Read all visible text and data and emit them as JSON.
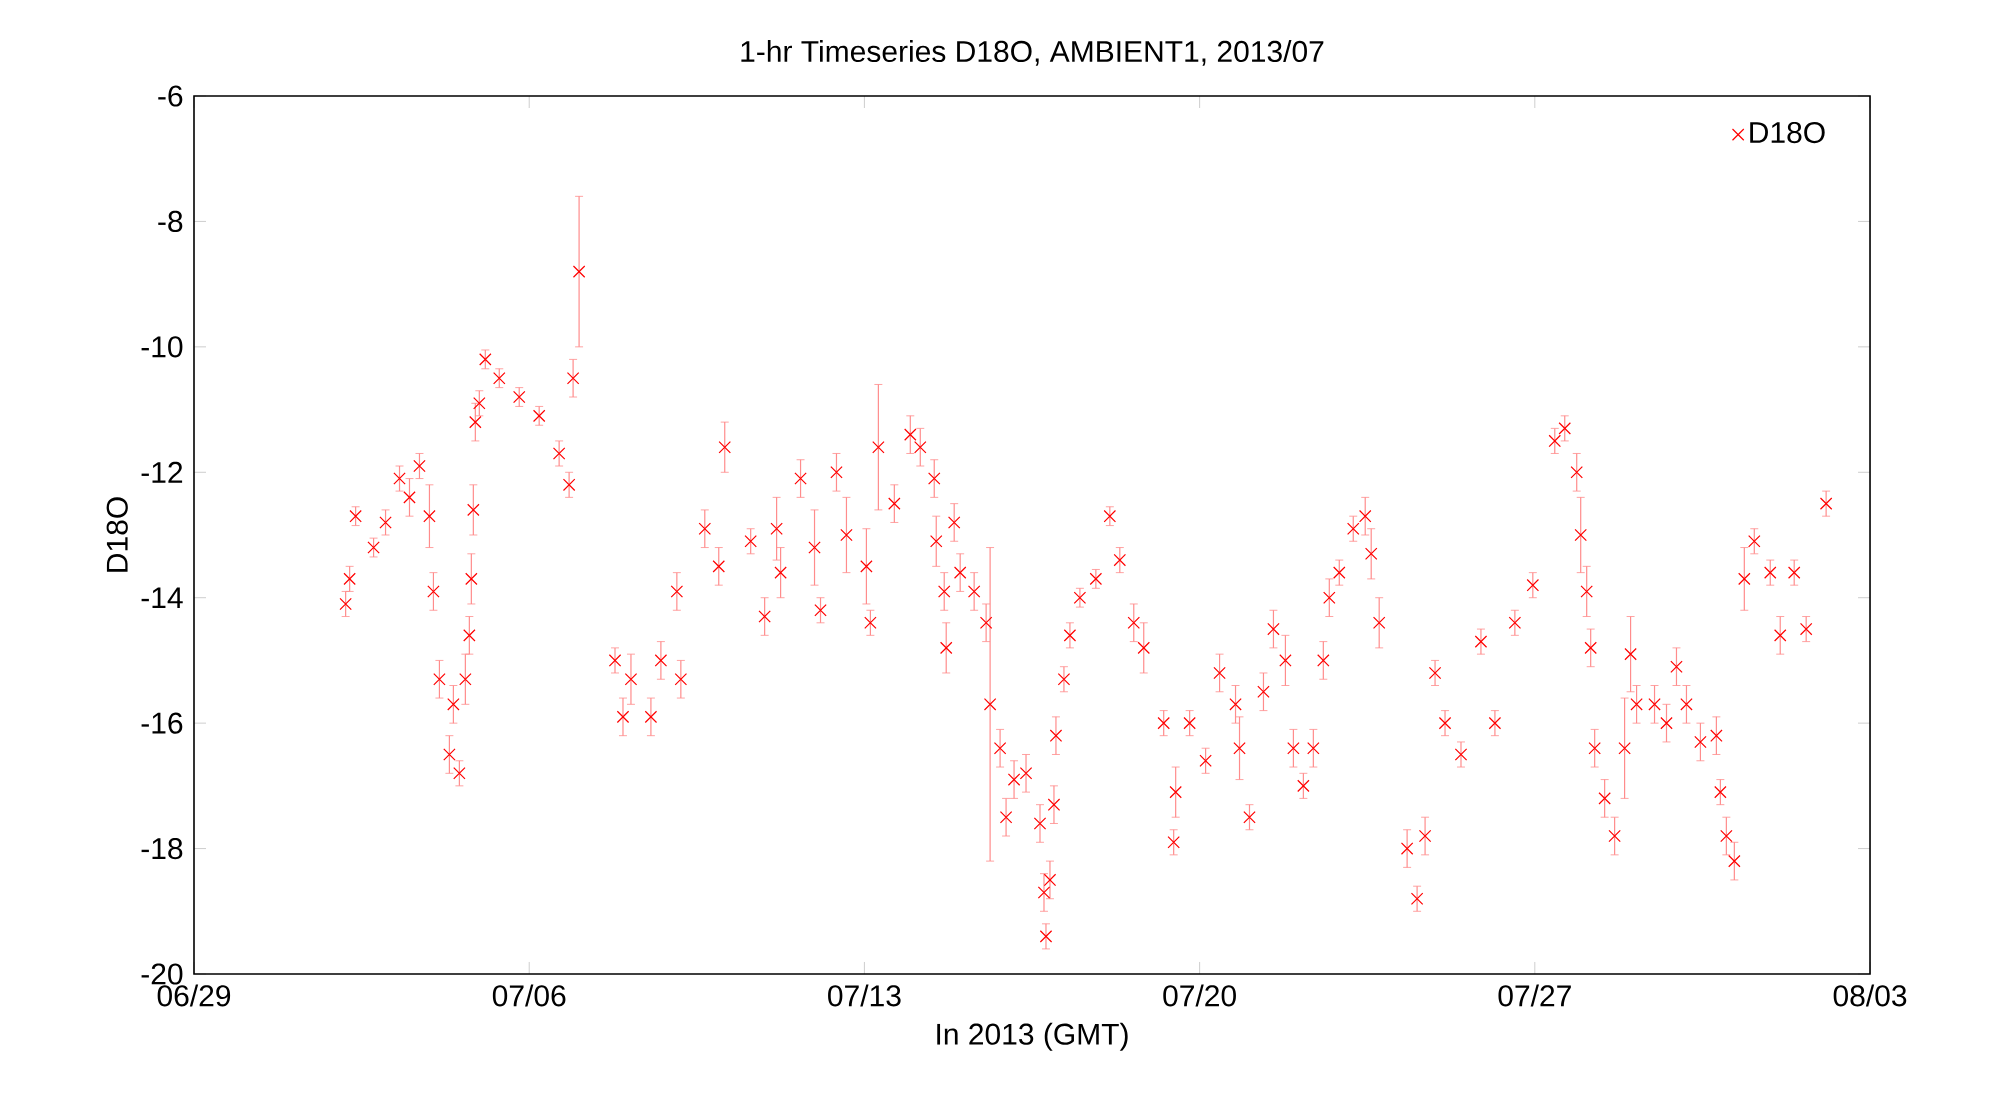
{
  "chart_data": {
    "type": "scatter",
    "title": "1-hr Timeseries D18O, AMBIENT1, 2013/07",
    "xlabel": "In 2013 (GMT)",
    "ylabel": "D18O",
    "xlim": [
      "2013-06-29",
      "2013-08-03"
    ],
    "xticks": [
      {
        "value": "2013-06-29",
        "label": "06/29"
      },
      {
        "value": "2013-07-06",
        "label": "07/06"
      },
      {
        "value": "2013-07-13",
        "label": "07/13"
      },
      {
        "value": "2013-07-20",
        "label": "07/20"
      },
      {
        "value": "2013-07-27",
        "label": "07/27"
      },
      {
        "value": "2013-08-03",
        "label": "08/03"
      }
    ],
    "ylim": [
      -20,
      -6
    ],
    "yticks": [
      -20,
      -18,
      -16,
      -14,
      -12,
      -10,
      -8,
      -6
    ],
    "legend": "top right",
    "marker": "cross",
    "grid": false,
    "series": [
      {
        "name": "D18O",
        "color": "#ff0000",
        "x": [
          "2013-07-02T04:00",
          "2013-07-02T06:00",
          "2013-07-02T09:00",
          "2013-07-02T18:00",
          "2013-07-03T00:00",
          "2013-07-03T07:00",
          "2013-07-03T12:00",
          "2013-07-03T17:00",
          "2013-07-03T22:00",
          "2013-07-04T00:00",
          "2013-07-04T03:00",
          "2013-07-04T08:00",
          "2013-07-04T10:00",
          "2013-07-04T13:00",
          "2013-07-04T16:00",
          "2013-07-04T18:00",
          "2013-07-04T19:00",
          "2013-07-04T20:00",
          "2013-07-04T21:00",
          "2013-07-04T23:00",
          "2013-07-05T02:00",
          "2013-07-05T09:00",
          "2013-07-05T19:00",
          "2013-07-06T05:00",
          "2013-07-06T15:00",
          "2013-07-06T20:00",
          "2013-07-06T22:00",
          "2013-07-07T01:00",
          "2013-07-07T19:00",
          "2013-07-07T23:00",
          "2013-07-08T03:00",
          "2013-07-08T13:00",
          "2013-07-08T18:00",
          "2013-07-09T02:00",
          "2013-07-09T04:00",
          "2013-07-09T16:00",
          "2013-07-09T23:00",
          "2013-07-10T02:00",
          "2013-07-10T15:00",
          "2013-07-10T22:00",
          "2013-07-11T04:00",
          "2013-07-11T06:00",
          "2013-07-11T16:00",
          "2013-07-11T23:00",
          "2013-07-12T02:00",
          "2013-07-12T10:00",
          "2013-07-12T15:00",
          "2013-07-13T01:00",
          "2013-07-13T03:00",
          "2013-07-13T07:00",
          "2013-07-13T15:00",
          "2013-07-13T23:00",
          "2013-07-14T04:00",
          "2013-07-14T11:00",
          "2013-07-14T12:00",
          "2013-07-14T16:00",
          "2013-07-14T17:00",
          "2013-07-14T21:00",
          "2013-07-15T00:00",
          "2013-07-15T07:00",
          "2013-07-15T13:00",
          "2013-07-15T15:00",
          "2013-07-15T20:00",
          "2013-07-15T23:00",
          "2013-07-16T03:00",
          "2013-07-16T09:00",
          "2013-07-16T16:00",
          "2013-07-16T18:00",
          "2013-07-16T19:00",
          "2013-07-16T21:00",
          "2013-07-16T23:00",
          "2013-07-17T00:00",
          "2013-07-17T04:00",
          "2013-07-17T07:00",
          "2013-07-17T12:00",
          "2013-07-17T20:00",
          "2013-07-18T03:00",
          "2013-07-18T08:00",
          "2013-07-18T15:00",
          "2013-07-18T20:00",
          "2013-07-19T06:00",
          "2013-07-19T11:00",
          "2013-07-19T12:00",
          "2013-07-19T19:00",
          "2013-07-20T03:00",
          "2013-07-20T10:00",
          "2013-07-20T18:00",
          "2013-07-20T20:00",
          "2013-07-21T01:00",
          "2013-07-21T08:00",
          "2013-07-21T13:00",
          "2013-07-21T19:00",
          "2013-07-21T23:00",
          "2013-07-22T04:00",
          "2013-07-22T09:00",
          "2013-07-22T14:00",
          "2013-07-22T17:00",
          "2013-07-22T22:00",
          "2013-07-23T05:00",
          "2013-07-23T11:00",
          "2013-07-23T14:00",
          "2013-07-23T18:00",
          "2013-07-24T08:00",
          "2013-07-24T13:00",
          "2013-07-24T17:00",
          "2013-07-24T22:00",
          "2013-07-25T03:00",
          "2013-07-25T11:00",
          "2013-07-25T21:00",
          "2013-07-26T04:00",
          "2013-07-26T14:00",
          "2013-07-26T23:00",
          "2013-07-27T10:00",
          "2013-07-27T15:00",
          "2013-07-27T21:00",
          "2013-07-27T23:00",
          "2013-07-28T02:00",
          "2013-07-28T04:00",
          "2013-07-28T06:00",
          "2013-07-28T11:00",
          "2013-07-28T16:00",
          "2013-07-28T21:00",
          "2013-07-29T00:00",
          "2013-07-29T03:00",
          "2013-07-29T12:00",
          "2013-07-29T18:00",
          "2013-07-29T23:00",
          "2013-07-30T04:00",
          "2013-07-30T11:00",
          "2013-07-30T19:00",
          "2013-07-30T21:00",
          "2013-07-31T00:00",
          "2013-07-31T04:00",
          "2013-07-31T09:00",
          "2013-07-31T14:00",
          "2013-07-31T22:00",
          "2013-08-01T03:00",
          "2013-08-01T10:00",
          "2013-08-01T16:00",
          "2013-08-02T02:00"
        ],
        "values": [
          -14.1,
          -13.7,
          -12.7,
          -13.2,
          -12.8,
          -12.1,
          -12.4,
          -11.9,
          -12.7,
          -13.9,
          -15.3,
          -16.5,
          -15.7,
          -16.8,
          -15.3,
          -14.6,
          -13.7,
          -12.6,
          -11.2,
          -10.9,
          -10.2,
          -10.5,
          -10.8,
          -11.1,
          -11.7,
          -12.2,
          -10.5,
          -8.8,
          -15.0,
          -15.9,
          -15.3,
          -15.9,
          -15.0,
          -13.9,
          -15.3,
          -12.9,
          -13.5,
          -11.6,
          -13.1,
          -14.3,
          -12.9,
          -13.6,
          -12.1,
          -13.2,
          -14.2,
          -12.0,
          -13.0,
          -13.5,
          -14.4,
          -11.6,
          -12.5,
          -11.4,
          -11.6,
          -12.1,
          -13.1,
          -13.9,
          -14.8,
          -12.8,
          -13.6,
          -13.9,
          -14.4,
          -15.7,
          -16.4,
          -17.5,
          -16.9,
          -16.8,
          -17.6,
          -18.7,
          -19.4,
          -18.5,
          -17.3,
          -16.2,
          -15.3,
          -14.6,
          -14.0,
          -13.7,
          -12.7,
          -13.4,
          -14.4,
          -14.8,
          -16.0,
          -17.9,
          -17.1,
          -16.0,
          -16.6,
          -15.2,
          -15.7,
          -16.4,
          -17.5,
          -15.5,
          -14.5,
          -15.0,
          -16.4,
          -17.0,
          -16.4,
          -15.0,
          -14.0,
          -13.6,
          -12.9,
          -12.7,
          -13.3,
          -14.4,
          -18.0,
          -18.8,
          -17.8,
          -15.2,
          -16.0,
          -16.5,
          -14.7,
          -16.0,
          -14.4,
          -13.8,
          -11.5,
          -11.3,
          -12.0,
          -13.0,
          -13.9,
          -14.8,
          -16.4,
          -17.2,
          -17.8,
          -16.4,
          -14.9,
          -15.7,
          -15.7,
          -16.0,
          -15.1,
          -15.7,
          -16.3,
          -16.2,
          -17.1,
          -17.8,
          -18.2,
          -13.7,
          -13.1,
          -13.6,
          -14.6,
          -13.6,
          -14.5,
          -12.5
        ],
        "errors": [
          0.2,
          0.2,
          0.15,
          0.15,
          0.2,
          0.2,
          0.3,
          0.2,
          0.5,
          0.3,
          0.3,
          0.3,
          0.3,
          0.2,
          0.4,
          0.3,
          0.4,
          0.4,
          0.3,
          0.2,
          0.15,
          0.15,
          0.15,
          0.15,
          0.2,
          0.2,
          0.3,
          1.2,
          0.2,
          0.3,
          0.4,
          0.3,
          0.3,
          0.3,
          0.3,
          0.3,
          0.3,
          0.4,
          0.2,
          0.3,
          0.5,
          0.4,
          0.3,
          0.6,
          0.2,
          0.3,
          0.6,
          0.6,
          0.2,
          1.0,
          0.3,
          0.3,
          0.3,
          0.3,
          0.4,
          0.3,
          0.4,
          0.3,
          0.3,
          0.3,
          0.3,
          2.5,
          0.3,
          0.3,
          0.3,
          0.3,
          0.3,
          0.3,
          0.2,
          0.3,
          0.3,
          0.3,
          0.2,
          0.2,
          0.15,
          0.15,
          0.15,
          0.2,
          0.3,
          0.4,
          0.2,
          0.2,
          0.4,
          0.2,
          0.2,
          0.3,
          0.3,
          0.5,
          0.2,
          0.3,
          0.3,
          0.4,
          0.3,
          0.2,
          0.3,
          0.3,
          0.3,
          0.2,
          0.2,
          0.3,
          0.4,
          0.4,
          0.3,
          0.2,
          0.3,
          0.2,
          0.2,
          0.2,
          0.2,
          0.2,
          0.2,
          0.2,
          0.2,
          0.2,
          0.3,
          0.6,
          0.4,
          0.3,
          0.3,
          0.3,
          0.3,
          0.8,
          0.6,
          0.3,
          0.3,
          0.3,
          0.3,
          0.3,
          0.3,
          0.3,
          0.2,
          0.3,
          0.3,
          0.5,
          0.2,
          0.2,
          0.3,
          0.2,
          0.2,
          0.2
        ]
      }
    ]
  }
}
